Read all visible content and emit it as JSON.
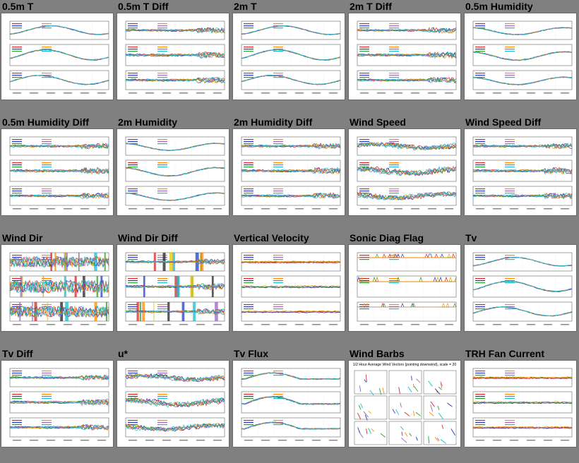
{
  "plots": [
    {
      "title": "0.5m T",
      "kind": "temp",
      "diff": false
    },
    {
      "title": "0.5m T Diff",
      "kind": "temp",
      "diff": true
    },
    {
      "title": "2m T",
      "kind": "temp",
      "diff": false
    },
    {
      "title": "2m T Diff",
      "kind": "temp",
      "diff": true
    },
    {
      "title": "0.5m Humidity",
      "kind": "hum",
      "diff": false
    },
    {
      "title": "0.5m Humidity Diff",
      "kind": "hum",
      "diff": true
    },
    {
      "title": "2m Humidity",
      "kind": "hum",
      "diff": false
    },
    {
      "title": "2m Humidity Diff",
      "kind": "hum",
      "diff": true
    },
    {
      "title": "Wind Speed",
      "kind": "noisy",
      "diff": false
    },
    {
      "title": "Wind Speed Diff",
      "kind": "noisy",
      "diff": true
    },
    {
      "title": "Wind Dir",
      "kind": "dir",
      "diff": false
    },
    {
      "title": "Wind Dir Diff",
      "kind": "dir",
      "diff": true
    },
    {
      "title": "Vertical Velocity",
      "kind": "flat",
      "diff": false
    },
    {
      "title": "Sonic Diag Flag",
      "kind": "flag",
      "diff": false
    },
    {
      "title": "Tv",
      "kind": "temp",
      "diff": false
    },
    {
      "title": "Tv Diff",
      "kind": "temp",
      "diff": true
    },
    {
      "title": "u*",
      "kind": "noisy",
      "diff": false
    },
    {
      "title": "Tv Flux",
      "kind": "flux",
      "diff": false
    },
    {
      "title": "Wind Barbs",
      "kind": "barbs",
      "diff": false,
      "heading": "1/2 Hour Average Wind Vectors (pointing downwind), scale = 20"
    },
    {
      "title": "TRH Fan Current",
      "kind": "flat",
      "diff": false
    }
  ],
  "colors": {
    "background": "#808080",
    "panel": "#ffffff",
    "series": [
      "#d62728",
      "#1f3fbf",
      "#2ca02c",
      "#ff8c00",
      "#9467bd",
      "#17becf",
      "#222222",
      "#e6c800"
    ]
  }
}
